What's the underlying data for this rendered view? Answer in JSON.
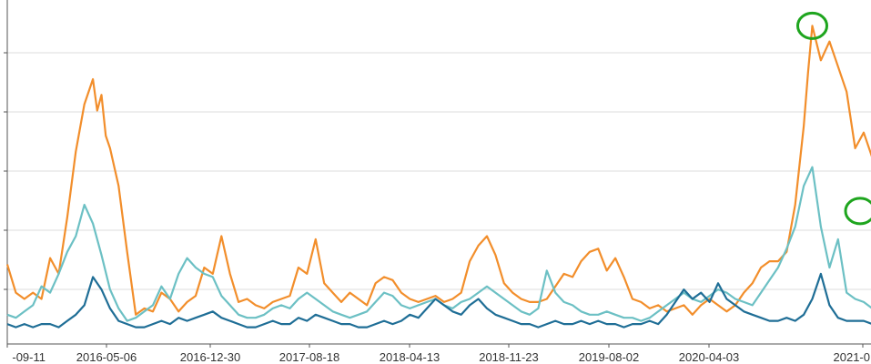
{
  "chart_data": {
    "type": "line",
    "title": "",
    "xlabel": "",
    "ylabel": "",
    "grid": true,
    "x_tick_labels": [
      "-09-11",
      "2016-05-06",
      "2016-12-30",
      "2017-08-18",
      "2018-04-13",
      "2018-11-23",
      "2019-08-02",
      "2020-04-03",
      "2021-0"
    ],
    "colors": {
      "orange": "#f28e2b",
      "teal": "#6cc0c4",
      "navy": "#1f6e96",
      "grid": "#dddddd",
      "axis": "#555555",
      "marker": "#1ea51e"
    },
    "x_range": [
      0,
      100
    ],
    "y_range": [
      0,
      100
    ],
    "series": [
      {
        "color": "#f28e2b",
        "values": [
          [
            0,
            21
          ],
          [
            1,
            12
          ],
          [
            2,
            10
          ],
          [
            3,
            12
          ],
          [
            4,
            10
          ],
          [
            5,
            23
          ],
          [
            6,
            18
          ],
          [
            7,
            36
          ],
          [
            8,
            57
          ],
          [
            9,
            72
          ],
          [
            10,
            80
          ],
          [
            10.5,
            70
          ],
          [
            11,
            75
          ],
          [
            11.5,
            62
          ],
          [
            12,
            58
          ],
          [
            13,
            46
          ],
          [
            14,
            25
          ],
          [
            15,
            5
          ],
          [
            16,
            7
          ],
          [
            17,
            6
          ],
          [
            18,
            12
          ],
          [
            19,
            10
          ],
          [
            20,
            6
          ],
          [
            21,
            9
          ],
          [
            22,
            11
          ],
          [
            23,
            20
          ],
          [
            24,
            18
          ],
          [
            25,
            30
          ],
          [
            26,
            18
          ],
          [
            27,
            9
          ],
          [
            28,
            10
          ],
          [
            29,
            8
          ],
          [
            30,
            7
          ],
          [
            31,
            9
          ],
          [
            32,
            10
          ],
          [
            33,
            11
          ],
          [
            34,
            20
          ],
          [
            35,
            18
          ],
          [
            36,
            29
          ],
          [
            37,
            15
          ],
          [
            38,
            12
          ],
          [
            39,
            9
          ],
          [
            40,
            12
          ],
          [
            41,
            10
          ],
          [
            42,
            8
          ],
          [
            43,
            15
          ],
          [
            44,
            17
          ],
          [
            45,
            16
          ],
          [
            46,
            12
          ],
          [
            47,
            10
          ],
          [
            48,
            9
          ],
          [
            49,
            10
          ],
          [
            50,
            11
          ],
          [
            51,
            9
          ],
          [
            52,
            10
          ],
          [
            53,
            12
          ],
          [
            54,
            22
          ],
          [
            55,
            27
          ],
          [
            56,
            30
          ],
          [
            57,
            24
          ],
          [
            58,
            15
          ],
          [
            59,
            12
          ],
          [
            60,
            10
          ],
          [
            61,
            9
          ],
          [
            62,
            9
          ],
          [
            63,
            10
          ],
          [
            64,
            14
          ],
          [
            65,
            18
          ],
          [
            66,
            17
          ],
          [
            67,
            22
          ],
          [
            68,
            25
          ],
          [
            69,
            26
          ],
          [
            70,
            19
          ],
          [
            71,
            23
          ],
          [
            72,
            17
          ],
          [
            73,
            10
          ],
          [
            74,
            9
          ],
          [
            75,
            7
          ],
          [
            76,
            8
          ],
          [
            77,
            6
          ],
          [
            78,
            7
          ],
          [
            79,
            8
          ],
          [
            80,
            5
          ],
          [
            81,
            8
          ],
          [
            82,
            10
          ],
          [
            83,
            8
          ],
          [
            84,
            6
          ],
          [
            85,
            8
          ],
          [
            86,
            12
          ],
          [
            87,
            15
          ],
          [
            88,
            20
          ],
          [
            89,
            22
          ],
          [
            90,
            22
          ],
          [
            91,
            25
          ],
          [
            92,
            40
          ],
          [
            93,
            65
          ],
          [
            93.5,
            82
          ],
          [
            94,
            97
          ],
          [
            95,
            86
          ],
          [
            96,
            92
          ],
          [
            97,
            84
          ],
          [
            98,
            76
          ],
          [
            99,
            58
          ],
          [
            100,
            63
          ],
          [
            101,
            55
          ],
          [
            102,
            38
          ]
        ]
      },
      {
        "color": "#6cc0c4",
        "values": [
          [
            0,
            5
          ],
          [
            1,
            4
          ],
          [
            2,
            6
          ],
          [
            3,
            8
          ],
          [
            4,
            14
          ],
          [
            5,
            12
          ],
          [
            6,
            18
          ],
          [
            7,
            25
          ],
          [
            8,
            30
          ],
          [
            9,
            40
          ],
          [
            10,
            34
          ],
          [
            11,
            24
          ],
          [
            12,
            13
          ],
          [
            13,
            7
          ],
          [
            14,
            3
          ],
          [
            15,
            4
          ],
          [
            16,
            6
          ],
          [
            17,
            8
          ],
          [
            18,
            14
          ],
          [
            19,
            10
          ],
          [
            20,
            18
          ],
          [
            21,
            23
          ],
          [
            22,
            20
          ],
          [
            23,
            18
          ],
          [
            24,
            17
          ],
          [
            25,
            11
          ],
          [
            26,
            8
          ],
          [
            27,
            5
          ],
          [
            28,
            4
          ],
          [
            29,
            4
          ],
          [
            30,
            5
          ],
          [
            31,
            7
          ],
          [
            32,
            8
          ],
          [
            33,
            7
          ],
          [
            34,
            10
          ],
          [
            35,
            12
          ],
          [
            36,
            10
          ],
          [
            37,
            8
          ],
          [
            38,
            6
          ],
          [
            39,
            5
          ],
          [
            40,
            4
          ],
          [
            41,
            5
          ],
          [
            42,
            6
          ],
          [
            43,
            9
          ],
          [
            44,
            12
          ],
          [
            45,
            11
          ],
          [
            46,
            8
          ],
          [
            47,
            7
          ],
          [
            48,
            8
          ],
          [
            49,
            9
          ],
          [
            50,
            10
          ],
          [
            51,
            8
          ],
          [
            52,
            7
          ],
          [
            53,
            9
          ],
          [
            54,
            10
          ],
          [
            55,
            12
          ],
          [
            56,
            14
          ],
          [
            57,
            12
          ],
          [
            58,
            10
          ],
          [
            59,
            8
          ],
          [
            60,
            6
          ],
          [
            61,
            5
          ],
          [
            62,
            7
          ],
          [
            63,
            19
          ],
          [
            64,
            12
          ],
          [
            65,
            9
          ],
          [
            66,
            8
          ],
          [
            67,
            6
          ],
          [
            68,
            5
          ],
          [
            69,
            5
          ],
          [
            70,
            6
          ],
          [
            71,
            5
          ],
          [
            72,
            4
          ],
          [
            73,
            4
          ],
          [
            74,
            3
          ],
          [
            75,
            4
          ],
          [
            76,
            6
          ],
          [
            77,
            8
          ],
          [
            78,
            10
          ],
          [
            79,
            12
          ],
          [
            80,
            10
          ],
          [
            81,
            9
          ],
          [
            82,
            11
          ],
          [
            83,
            13
          ],
          [
            84,
            12
          ],
          [
            85,
            10
          ],
          [
            86,
            9
          ],
          [
            87,
            8
          ],
          [
            88,
            12
          ],
          [
            89,
            16
          ],
          [
            90,
            20
          ],
          [
            91,
            26
          ],
          [
            92,
            33
          ],
          [
            93,
            46
          ],
          [
            94,
            52
          ],
          [
            95,
            33
          ],
          [
            96,
            20
          ],
          [
            97,
            29
          ],
          [
            98,
            12
          ],
          [
            99,
            10
          ],
          [
            100,
            9
          ],
          [
            101,
            7
          ],
          [
            102,
            5
          ]
        ]
      },
      {
        "color": "#1f6e96",
        "values": [
          [
            0,
            2
          ],
          [
            1,
            1
          ],
          [
            2,
            2
          ],
          [
            3,
            1
          ],
          [
            4,
            2
          ],
          [
            5,
            2
          ],
          [
            6,
            1
          ],
          [
            7,
            3
          ],
          [
            8,
            5
          ],
          [
            9,
            8
          ],
          [
            10,
            17
          ],
          [
            11,
            13
          ],
          [
            12,
            7
          ],
          [
            13,
            3
          ],
          [
            14,
            2
          ],
          [
            15,
            1
          ],
          [
            16,
            1
          ],
          [
            17,
            2
          ],
          [
            18,
            3
          ],
          [
            19,
            2
          ],
          [
            20,
            4
          ],
          [
            21,
            3
          ],
          [
            22,
            4
          ],
          [
            23,
            5
          ],
          [
            24,
            6
          ],
          [
            25,
            4
          ],
          [
            26,
            3
          ],
          [
            27,
            2
          ],
          [
            28,
            1
          ],
          [
            29,
            1
          ],
          [
            30,
            2
          ],
          [
            31,
            3
          ],
          [
            32,
            2
          ],
          [
            33,
            2
          ],
          [
            34,
            4
          ],
          [
            35,
            3
          ],
          [
            36,
            5
          ],
          [
            37,
            4
          ],
          [
            38,
            3
          ],
          [
            39,
            2
          ],
          [
            40,
            2
          ],
          [
            41,
            1
          ],
          [
            42,
            1
          ],
          [
            43,
            2
          ],
          [
            44,
            3
          ],
          [
            45,
            2
          ],
          [
            46,
            3
          ],
          [
            47,
            5
          ],
          [
            48,
            4
          ],
          [
            49,
            7
          ],
          [
            50,
            10
          ],
          [
            51,
            8
          ],
          [
            52,
            6
          ],
          [
            53,
            5
          ],
          [
            54,
            8
          ],
          [
            55,
            10
          ],
          [
            56,
            7
          ],
          [
            57,
            5
          ],
          [
            58,
            4
          ],
          [
            59,
            3
          ],
          [
            60,
            2
          ],
          [
            61,
            2
          ],
          [
            62,
            1
          ],
          [
            63,
            2
          ],
          [
            64,
            3
          ],
          [
            65,
            2
          ],
          [
            66,
            2
          ],
          [
            67,
            3
          ],
          [
            68,
            2
          ],
          [
            69,
            3
          ],
          [
            70,
            2
          ],
          [
            71,
            2
          ],
          [
            72,
            1
          ],
          [
            73,
            2
          ],
          [
            74,
            2
          ],
          [
            75,
            3
          ],
          [
            76,
            2
          ],
          [
            77,
            5
          ],
          [
            78,
            9
          ],
          [
            79,
            13
          ],
          [
            80,
            10
          ],
          [
            81,
            12
          ],
          [
            82,
            9
          ],
          [
            83,
            15
          ],
          [
            84,
            10
          ],
          [
            85,
            8
          ],
          [
            86,
            6
          ],
          [
            87,
            5
          ],
          [
            88,
            4
          ],
          [
            89,
            3
          ],
          [
            90,
            3
          ],
          [
            91,
            4
          ],
          [
            92,
            3
          ],
          [
            93,
            5
          ],
          [
            94,
            10
          ],
          [
            95,
            18
          ],
          [
            96,
            8
          ],
          [
            97,
            4
          ],
          [
            98,
            3
          ],
          [
            99,
            3
          ],
          [
            100,
            3
          ],
          [
            101,
            2
          ],
          [
            102,
            1
          ]
        ]
      }
    ],
    "highlight_points": [
      [
        94,
        97
      ],
      [
        102,
        38
      ]
    ]
  }
}
